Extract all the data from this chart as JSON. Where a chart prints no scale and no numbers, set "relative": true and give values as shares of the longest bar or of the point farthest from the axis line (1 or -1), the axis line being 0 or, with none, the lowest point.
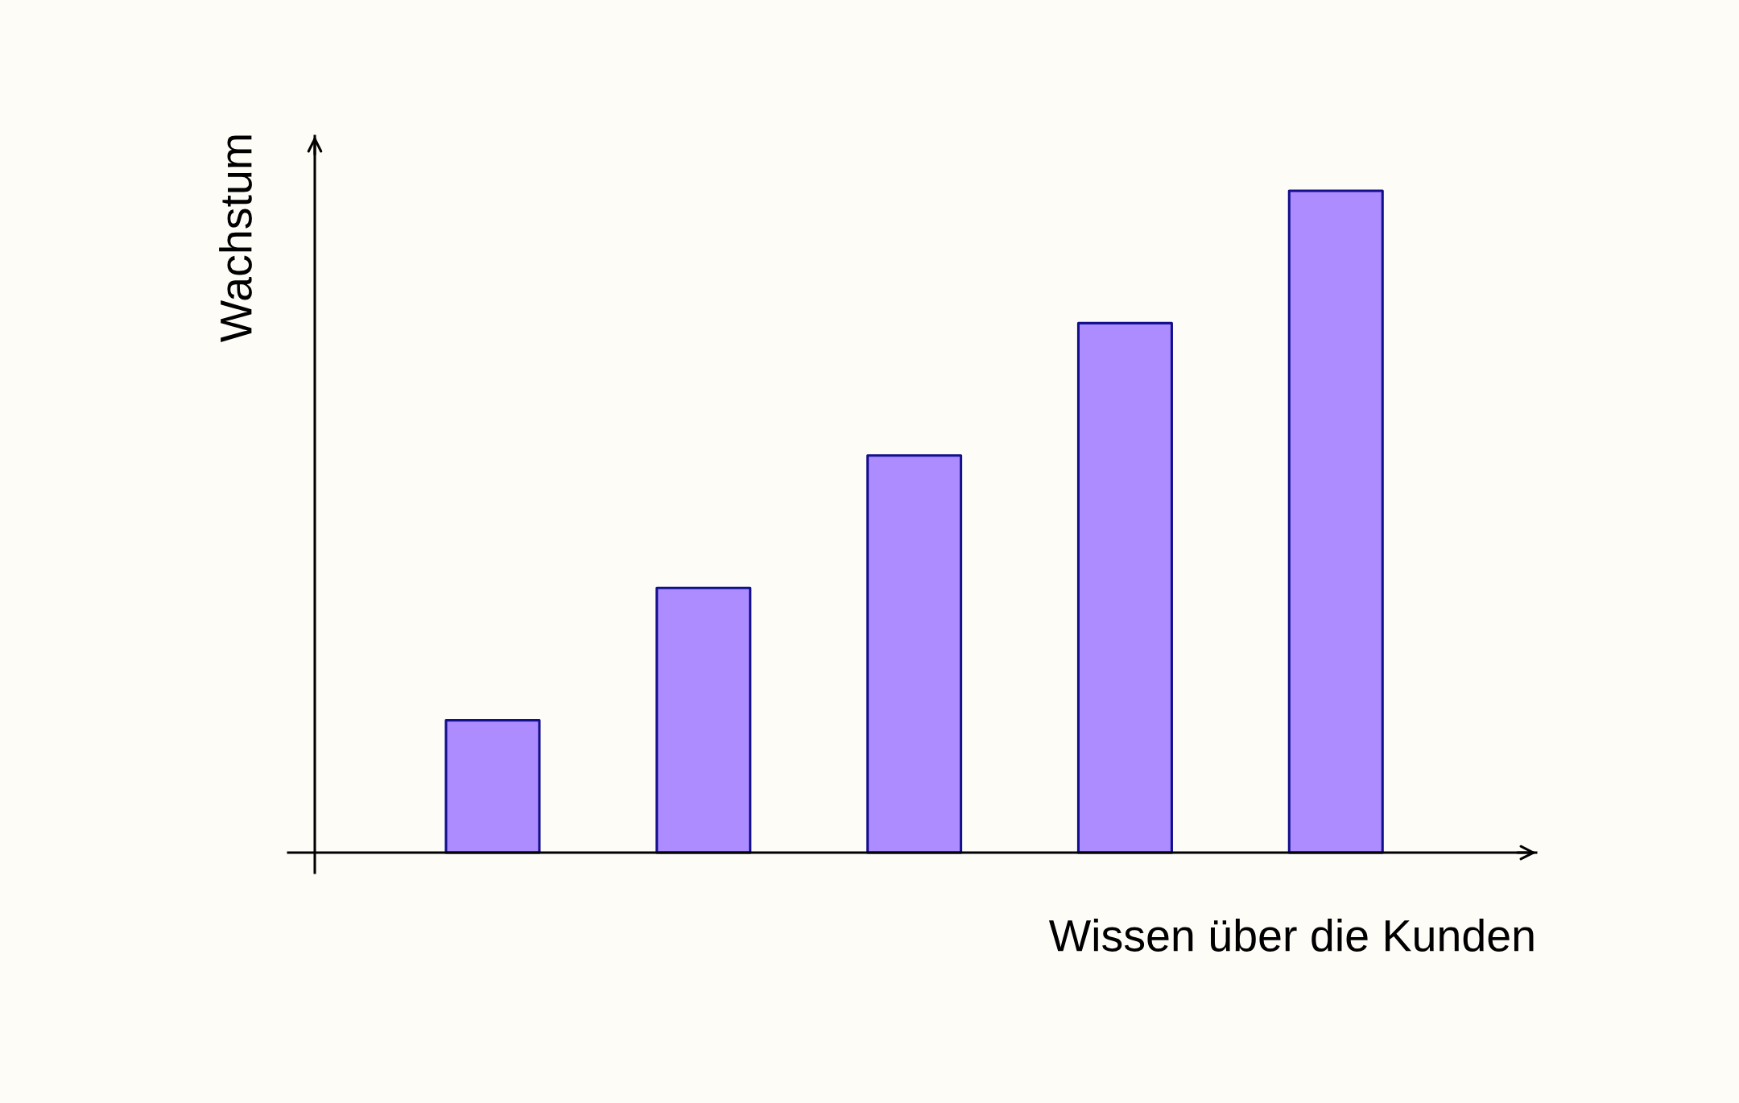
{
  "chart_data": {
    "type": "bar",
    "relative": true,
    "xlabel": "Wissen über die Kunden",
    "ylabel": "Wachstum",
    "categories": [
      null,
      null,
      null,
      null,
      null
    ],
    "values": [
      0.2,
      0.4,
      0.6,
      0.8,
      1.0
    ],
    "color": "#ad8cff",
    "grid": false,
    "legend": false
  }
}
